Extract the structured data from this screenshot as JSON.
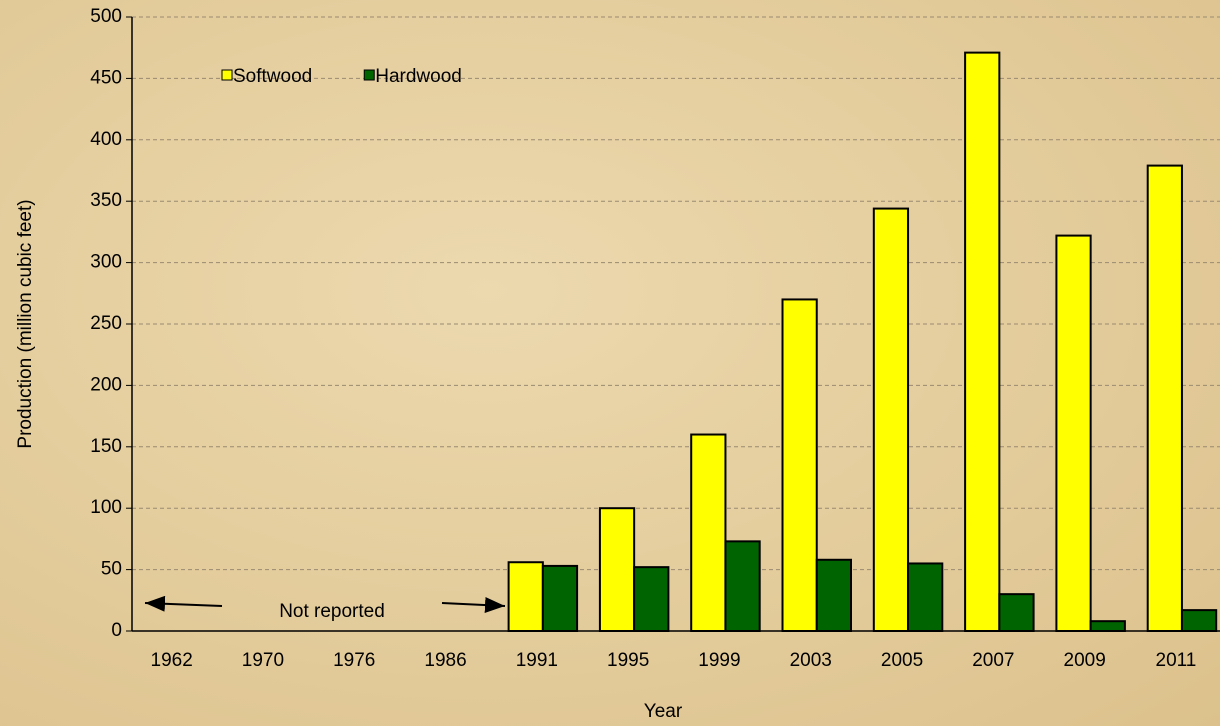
{
  "chart_data": {
    "type": "bar",
    "x_label": "Year",
    "y_label": "Production (million cubic feet)",
    "annotation": "Not reported",
    "categories": [
      "1962",
      "1970",
      "1976",
      "1986",
      "1991",
      "1995",
      "1999",
      "2003",
      "2005",
      "2007",
      "2009",
      "2011"
    ],
    "series": [
      {
        "name": "Softwood",
        "color": "#ffff00",
        "values": [
          null,
          null,
          null,
          null,
          56,
          100,
          160,
          270,
          344,
          471,
          322,
          379
        ]
      },
      {
        "name": "Hardwood",
        "color": "#006400",
        "values": [
          null,
          null,
          null,
          null,
          53,
          52,
          73,
          58,
          55,
          30,
          8,
          17
        ]
      }
    ],
    "ylim": [
      0,
      500
    ],
    "yticks": [
      0,
      50,
      100,
      150,
      200,
      250,
      300,
      350,
      400,
      450,
      500
    ],
    "grid": true,
    "legend": "top-left"
  }
}
